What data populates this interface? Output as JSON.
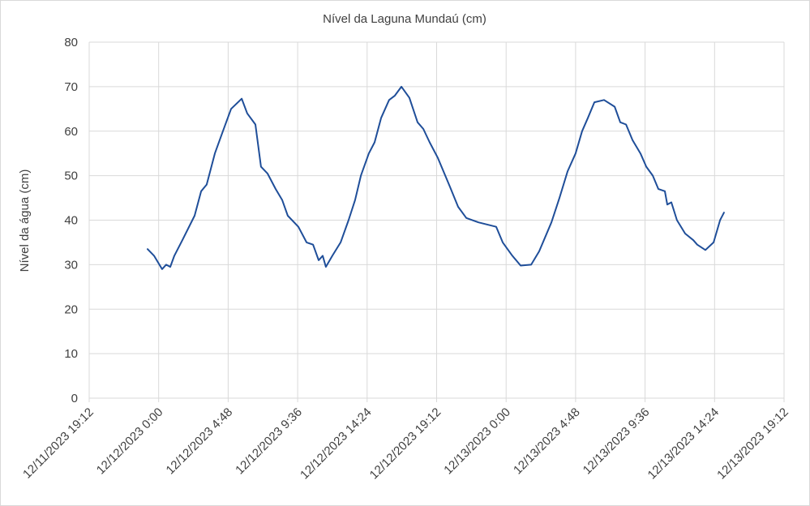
{
  "chart_data": {
    "type": "line",
    "title": "Nível da Laguna Mundaú (cm)",
    "y_label": "Nível da água (cm)",
    "color": "#1f4e99",
    "grid": true,
    "x": [
      "12/11/2023 23:14",
      "12/11/2023 23:41",
      "12/12/2023 0:14",
      "12/12/2023 0:31",
      "12/12/2023 0:48",
      "12/12/2023 1:05",
      "12/12/2023 1:38",
      "12/12/2023 2:29",
      "12/12/2023 2:56",
      "12/12/2023 3:19",
      "12/12/2023 3:53",
      "12/12/2023 4:26",
      "12/12/2023 5:00",
      "12/12/2023 5:44",
      "12/12/2023 6:07",
      "12/12/2023 6:41",
      "12/12/2023 7:04",
      "12/12/2023 7:31",
      "12/12/2023 8:05",
      "12/12/2023 8:32",
      "12/12/2023 8:55",
      "12/12/2023 9:39",
      "12/12/2023 10:13",
      "12/12/2023 10:40",
      "12/12/2023 11:03",
      "12/12/2023 11:20",
      "12/12/2023 11:33",
      "12/12/2023 12:00",
      "12/12/2023 12:34",
      "12/12/2023 13:07",
      "12/12/2023 13:34",
      "12/12/2023 13:58",
      "12/12/2023 14:31",
      "12/12/2023 14:55",
      "12/12/2023 15:22",
      "12/12/2023 15:55",
      "12/12/2023 16:19",
      "12/12/2023 16:46",
      "12/12/2023 17:19",
      "12/12/2023 17:53",
      "12/12/2023 18:17",
      "12/12/2023 18:43",
      "12/12/2023 19:17",
      "12/12/2023 20:07",
      "12/12/2023 20:41",
      "12/12/2023 21:15",
      "12/12/2023 22:05",
      "12/12/2023 23:19",
      "12/12/2023 23:46",
      "12/13/2023 0:26",
      "12/13/2023 1:00",
      "12/13/2023 1:44",
      "12/13/2023 2:17",
      "12/13/2023 3:08",
      "12/13/2023 3:41",
      "12/13/2023 4:15",
      "12/13/2023 4:48",
      "12/13/2023 5:15",
      "12/13/2023 5:39",
      "12/13/2023 6:06",
      "12/13/2023 6:46",
      "12/13/2023 7:30",
      "12/13/2023 7:53",
      "12/13/2023 8:17",
      "12/13/2023 8:44",
      "12/13/2023 9:17",
      "12/13/2023 9:41",
      "12/13/2023 10:08",
      "12/13/2023 10:31",
      "12/13/2023 10:58",
      "12/13/2023 11:08",
      "12/13/2023 11:25",
      "12/13/2023 11:48",
      "12/13/2023 12:22",
      "12/13/2023 12:56",
      "12/13/2023 13:12",
      "12/13/2023 13:46",
      "12/13/2023 14:20",
      "12/13/2023 14:47",
      "12/13/2023 15:03"
    ],
    "values": [
      33.5,
      32,
      29,
      30,
      29.5,
      32,
      35.5,
      41,
      46.5,
      48,
      55,
      60,
      65,
      67.3,
      64,
      61.5,
      52,
      50.5,
      47,
      44.5,
      41,
      38.5,
      35,
      34.5,
      31,
      32,
      29.5,
      32,
      35,
      40,
      44.5,
      50,
      55,
      57.5,
      63,
      67,
      68,
      70,
      67.5,
      62,
      60.5,
      57.5,
      54,
      47.5,
      43,
      40.5,
      39.5,
      38.5,
      35,
      32,
      29.8,
      30,
      33,
      39.5,
      45,
      51,
      55,
      60,
      63,
      66.5,
      67,
      65.5,
      62,
      61.5,
      58,
      55,
      52,
      50,
      47,
      46.5,
      43.5,
      44,
      40,
      37,
      35.5,
      34.5,
      33.3,
      35,
      40,
      41.7
    ],
    "xlim": [
      "12/11/2023 19:12",
      "12/13/2023 19:12"
    ],
    "xticks": [
      "12/11/2023 19:12",
      "12/12/2023 0:00",
      "12/12/2023 4:48",
      "12/12/2023 9:36",
      "12/12/2023 14:24",
      "12/12/2023 19:12",
      "12/13/2023 0:00",
      "12/13/2023 4:48",
      "12/13/2023 9:36",
      "12/13/2023 14:24",
      "12/13/2023 19:12"
    ],
    "ylim": [
      0,
      80
    ],
    "yticks": [
      0,
      10,
      20,
      30,
      40,
      50,
      60,
      70,
      80
    ]
  }
}
